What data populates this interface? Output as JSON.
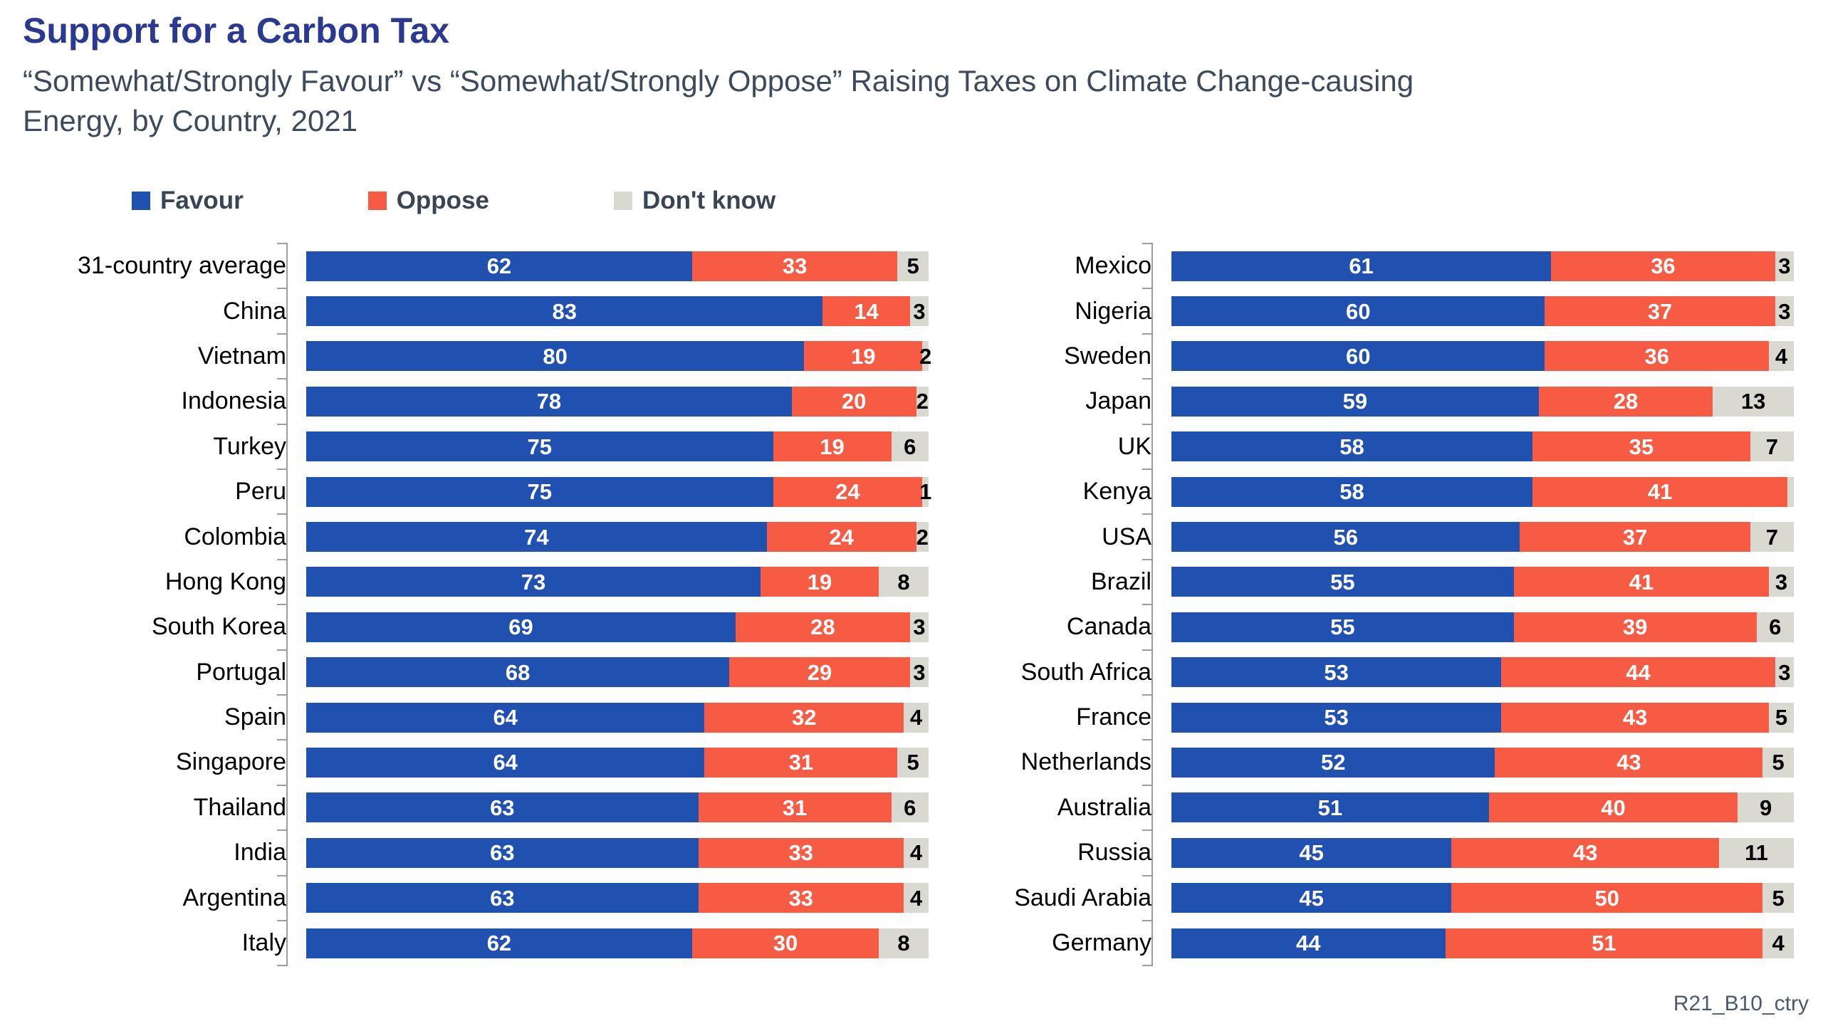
{
  "header": {
    "title": "Support for a Carbon Tax",
    "subtitle_line1": "“Somewhat/Strongly Favour” vs “Somewhat/Strongly Oppose” Raising Taxes on Climate Change-causing",
    "subtitle_line2": "Energy, by Country, 2021"
  },
  "legend": {
    "items": [
      {
        "key": "favour",
        "label": "Favour"
      },
      {
        "key": "oppose",
        "label": "Oppose"
      },
      {
        "key": "dont_know",
        "label": "Don't know"
      }
    ]
  },
  "colors": {
    "favour": "#2151B0",
    "oppose": "#F85B43",
    "dont_know": "#D9D9D2",
    "axis": "#9E9E9E",
    "title_text": "#2B3990",
    "subtitle_text": "#3D4A5C",
    "value_label_light": "#FFFFFF",
    "value_label_dark": "#000000"
  },
  "footer": {
    "source_code": "R21_B10_ctry"
  },
  "chart_data": {
    "type": "bar",
    "orientation": "horizontal",
    "stacked": true,
    "unit": "percent",
    "xlim": [
      0,
      100
    ],
    "grid": false,
    "legend_position": "top",
    "series_names": [
      "Favour",
      "Oppose",
      "Don't know"
    ],
    "columns": [
      {
        "rows": [
          {
            "country": "31-country average",
            "favour": 62,
            "oppose": 33,
            "dont_know": 5
          },
          {
            "country": "China",
            "favour": 83,
            "oppose": 14,
            "dont_know": 3
          },
          {
            "country": "Vietnam",
            "favour": 80,
            "oppose": 19,
            "dont_know": 2
          },
          {
            "country": "Indonesia",
            "favour": 78,
            "oppose": 20,
            "dont_know": 2
          },
          {
            "country": "Turkey",
            "favour": 75,
            "oppose": 19,
            "dont_know": 6
          },
          {
            "country": "Peru",
            "favour": 75,
            "oppose": 24,
            "dont_know": 1
          },
          {
            "country": "Colombia",
            "favour": 74,
            "oppose": 24,
            "dont_know": 2
          },
          {
            "country": "Hong Kong",
            "favour": 73,
            "oppose": 19,
            "dont_know": 8
          },
          {
            "country": "South Korea",
            "favour": 69,
            "oppose": 28,
            "dont_know": 3
          },
          {
            "country": "Portugal",
            "favour": 68,
            "oppose": 29,
            "dont_know": 3
          },
          {
            "country": "Spain",
            "favour": 64,
            "oppose": 32,
            "dont_know": 4
          },
          {
            "country": "Singapore",
            "favour": 64,
            "oppose": 31,
            "dont_know": 5
          },
          {
            "country": "Thailand",
            "favour": 63,
            "oppose": 31,
            "dont_know": 6
          },
          {
            "country": "India",
            "favour": 63,
            "oppose": 33,
            "dont_know": 4
          },
          {
            "country": "Argentina",
            "favour": 63,
            "oppose": 33,
            "dont_know": 4
          },
          {
            "country": "Italy",
            "favour": 62,
            "oppose": 30,
            "dont_know": 8
          }
        ]
      },
      {
        "rows": [
          {
            "country": "Mexico",
            "favour": 61,
            "oppose": 36,
            "dont_know": 3
          },
          {
            "country": "Nigeria",
            "favour": 60,
            "oppose": 37,
            "dont_know": 3
          },
          {
            "country": "Sweden",
            "favour": 60,
            "oppose": 36,
            "dont_know": 4
          },
          {
            "country": "Japan",
            "favour": 59,
            "oppose": 28,
            "dont_know": 13
          },
          {
            "country": "UK",
            "favour": 58,
            "oppose": 35,
            "dont_know": 7
          },
          {
            "country": "Kenya",
            "favour": 58,
            "oppose": 41,
            "dont_know": 1,
            "dk_label": ""
          },
          {
            "country": "USA",
            "favour": 56,
            "oppose": 37,
            "dont_know": 7
          },
          {
            "country": "Brazil",
            "favour": 55,
            "oppose": 41,
            "dont_know": 3
          },
          {
            "country": "Canada",
            "favour": 55,
            "oppose": 39,
            "dont_know": 6
          },
          {
            "country": "South Africa",
            "favour": 53,
            "oppose": 44,
            "dont_know": 3
          },
          {
            "country": "France",
            "favour": 53,
            "oppose": 43,
            "dont_know": 5
          },
          {
            "country": "Netherlands",
            "favour": 52,
            "oppose": 43,
            "dont_know": 5
          },
          {
            "country": "Australia",
            "favour": 51,
            "oppose": 40,
            "dont_know": 9
          },
          {
            "country": "Russia",
            "favour": 45,
            "oppose": 43,
            "dont_know": 11
          },
          {
            "country": "Saudi Arabia",
            "favour": 45,
            "oppose": 50,
            "dont_know": 5
          },
          {
            "country": "Germany",
            "favour": 44,
            "oppose": 51,
            "dont_know": 4
          }
        ]
      }
    ]
  }
}
